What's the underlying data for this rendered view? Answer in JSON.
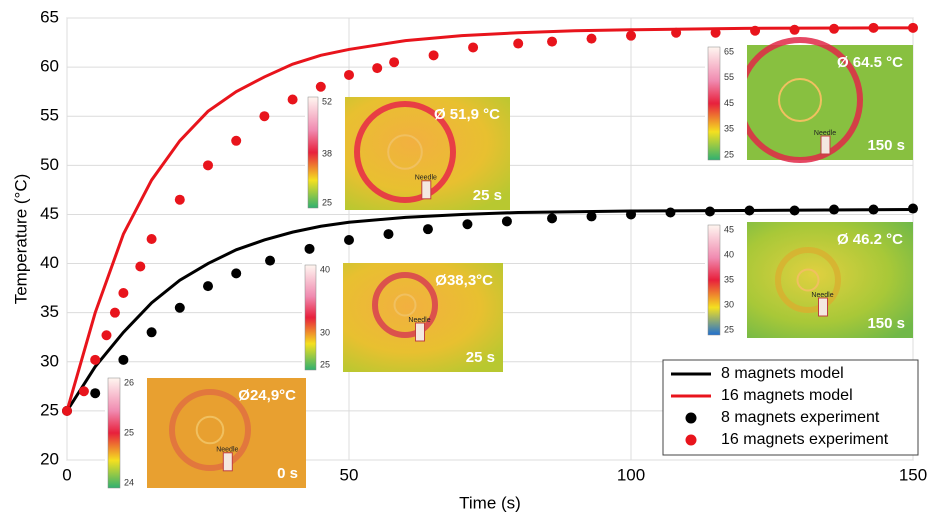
{
  "chart_data": {
    "type": "line",
    "xlabel": "Time (s)",
    "ylabel": "Temperature (°C)",
    "xlim": [
      0,
      150
    ],
    "xticks": [
      0,
      50,
      100,
      150
    ],
    "ylim": [
      20,
      65
    ],
    "yticks": [
      20,
      25,
      30,
      35,
      40,
      45,
      50,
      55,
      60,
      65
    ],
    "grid": true,
    "legend": "lower right",
    "series": [
      {
        "name": "8 magnets model",
        "color": "#000000",
        "style": "line",
        "x": [
          0,
          5,
          10,
          15,
          20,
          25,
          30,
          35,
          40,
          45,
          50,
          60,
          70,
          80,
          100,
          120,
          150
        ],
        "values": [
          25,
          29.5,
          33,
          36,
          38.3,
          40,
          41.4,
          42.4,
          43.2,
          43.8,
          44.2,
          44.7,
          45,
          45.2,
          45.35,
          45.4,
          45.5
        ]
      },
      {
        "name": "16 magnets model",
        "color": "#e8141c",
        "style": "line",
        "x": [
          0,
          5,
          10,
          15,
          20,
          25,
          30,
          35,
          40,
          45,
          50,
          60,
          70,
          80,
          90,
          100,
          120,
          150
        ],
        "values": [
          25,
          35,
          43,
          48.5,
          52.5,
          55.5,
          57.5,
          59,
          60.3,
          61.2,
          61.8,
          62.7,
          63.2,
          63.5,
          63.7,
          63.8,
          63.95,
          64
        ]
      },
      {
        "name": "8 magnets experiment",
        "color": "#000000",
        "style": "scatter",
        "x": [
          0,
          5,
          10,
          15,
          20,
          25,
          30,
          36,
          43,
          50,
          57,
          64,
          71,
          78,
          86,
          93,
          100,
          107,
          114,
          121,
          129,
          136,
          143,
          150
        ],
        "values": [
          25,
          26.8,
          30.2,
          33,
          35.5,
          37.7,
          39,
          40.3,
          41.5,
          42.4,
          43,
          43.5,
          44,
          44.3,
          44.6,
          44.8,
          45,
          45.2,
          45.3,
          45.4,
          45.4,
          45.5,
          45.5,
          45.6
        ]
      },
      {
        "name": "16 magnets experiment",
        "color": "#e8141c",
        "style": "scatter",
        "x": [
          0,
          3,
          5,
          7,
          8.5,
          10,
          13,
          15,
          20,
          25,
          30,
          35,
          40,
          45,
          50,
          55,
          58,
          65,
          72,
          80,
          86,
          93,
          100,
          108,
          115,
          122,
          129,
          136,
          143,
          150
        ],
        "values": [
          25,
          27,
          30.2,
          32.7,
          35,
          37,
          39.7,
          42.5,
          46.5,
          50,
          52.5,
          55,
          56.7,
          58,
          59.2,
          59.9,
          60.5,
          61.2,
          62,
          62.4,
          62.6,
          62.9,
          63.2,
          63.5,
          63.5,
          63.7,
          63.8,
          63.9,
          64,
          64
        ]
      }
    ],
    "insets": [
      {
        "temperature": "Ø 51,9 °C",
        "time": "25 s",
        "needle": "Needle",
        "colorbar_ticks": [
          52,
          38,
          25
        ]
      },
      {
        "temperature": "Ø38,3°C",
        "time": "25 s",
        "needle": "Needle",
        "colorbar_ticks": [
          40,
          30,
          25
        ]
      },
      {
        "temperature": "Ø24,9°C",
        "time": "0 s",
        "needle": "Needle",
        "colorbar_ticks": [
          26,
          25,
          24
        ]
      },
      {
        "temperature": "Ø 64.5 °C",
        "time": "150 s",
        "needle": "Needle",
        "colorbar_ticks": [
          65,
          55,
          45,
          35,
          25
        ]
      },
      {
        "temperature": "Ø 46.2 °C",
        "time": "150 s",
        "needle": "Needle",
        "colorbar_ticks": [
          45,
          40,
          35,
          30,
          25
        ]
      }
    ]
  }
}
